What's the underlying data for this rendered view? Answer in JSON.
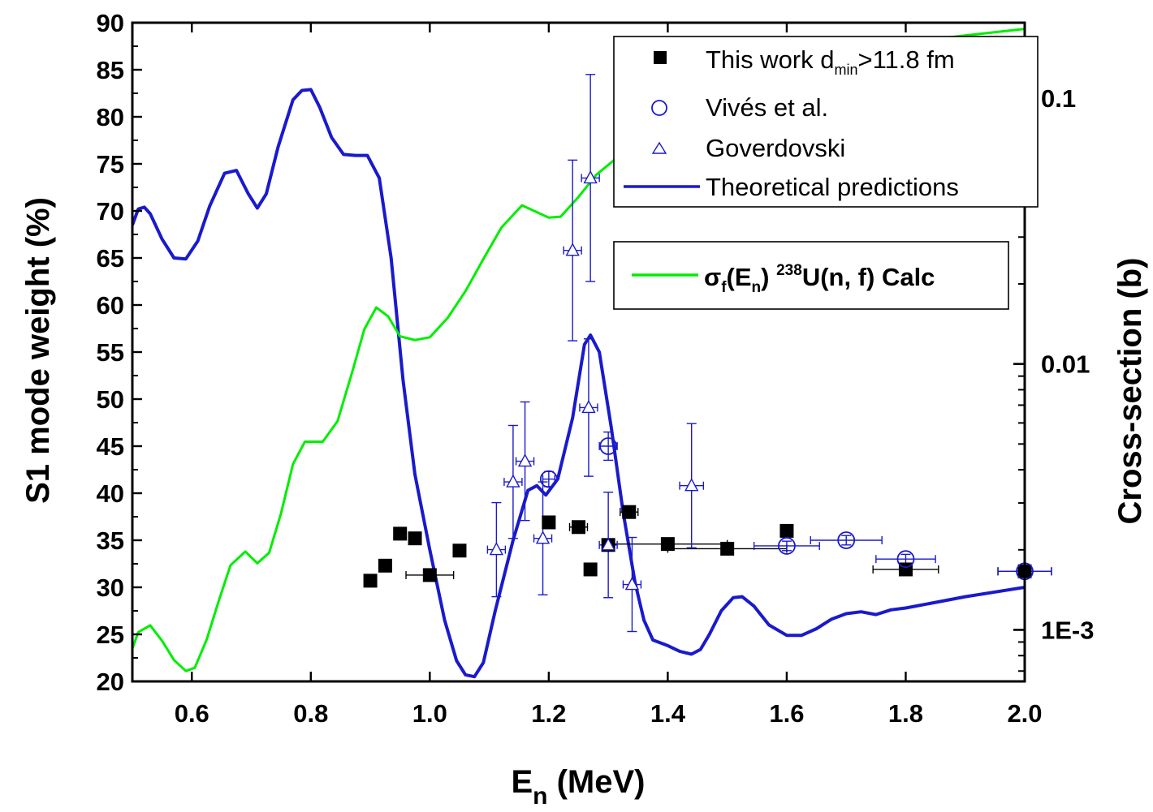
{
  "chart_data": {
    "type": "scatter",
    "x_axis": {
      "label_main": "E",
      "label_sub": "n",
      "label_rest": " (MeV)",
      "range": [
        0.5,
        2.0
      ],
      "ticks": [
        0.6,
        0.8,
        1.0,
        1.2,
        1.4,
        1.6,
        1.8,
        2.0
      ],
      "tick_labels": [
        "0.6",
        "0.8",
        "1.0",
        "1.2",
        "1.4",
        "1.6",
        "1.8",
        "2.0"
      ]
    },
    "y_axis_left": {
      "label": "S1 mode weight (%)",
      "range": [
        20,
        90
      ],
      "ticks": [
        20,
        25,
        30,
        35,
        40,
        45,
        50,
        55,
        60,
        65,
        70,
        75,
        80,
        85,
        90
      ],
      "tick_labels": [
        "20",
        "25",
        "30",
        "35",
        "40",
        "45",
        "50",
        "55",
        "60",
        "65",
        "70",
        "75",
        "80",
        "85",
        "90"
      ]
    },
    "y_axis_right": {
      "label": "Cross-section (b)",
      "scale": "log",
      "range": [
        0.00064,
        0.192
      ],
      "ticks": [
        0.001,
        0.01,
        0.1
      ],
      "tick_labels": [
        "1E-3",
        "0.01",
        "0.1"
      ]
    },
    "legend1": {
      "placement": "top-right",
      "entries": [
        {
          "label": "This work d",
          "sub": "min",
          "rest": ">11.8 fm",
          "marker": "filled-square"
        },
        {
          "label": "Vivés et al.",
          "marker": "open-circle"
        },
        {
          "label": "Goverdovski",
          "marker": "open-triangle"
        },
        {
          "label": "Theoretical predictions",
          "marker": "line"
        }
      ]
    },
    "legend2": {
      "placement": "top-right",
      "entries": [
        {
          "label_pre": "σ",
          "label_sub": "f",
          "label_mid": "(E",
          "label_sub2": "n",
          "label_close": ")",
          "label_sup": "238",
          "label_rest": "U(n, f) Calc",
          "marker": "line"
        }
      ]
    },
    "series": [
      {
        "name": "This work d_min>11.8 fm",
        "kind": "points",
        "marker": "filled-square",
        "color": "#000000",
        "points": [
          {
            "x": 0.9,
            "y": 30.7,
            "xerr": 0.01,
            "yerr": 0.4
          },
          {
            "x": 0.925,
            "y": 32.3,
            "xerr": 0.01,
            "yerr": 0.4
          },
          {
            "x": 0.95,
            "y": 35.7,
            "xerr": 0.01,
            "yerr": 0.4
          },
          {
            "x": 0.975,
            "y": 35.2,
            "xerr": 0.01,
            "yerr": 0.4
          },
          {
            "x": 1.0,
            "y": 31.3,
            "xerr": 0.04,
            "yerr": 0.4
          },
          {
            "x": 1.05,
            "y": 33.9,
            "xerr": 0.01,
            "yerr": 0.4
          },
          {
            "x": 1.2,
            "y": 36.9,
            "xerr": 0.01,
            "yerr": 0.4
          },
          {
            "x": 1.25,
            "y": 36.4,
            "xerr": 0.015,
            "yerr": 0.4
          },
          {
            "x": 1.27,
            "y": 31.9,
            "xerr": 0.01,
            "yerr": 0.4
          },
          {
            "x": 1.3,
            "y": 34.5,
            "xerr": 0.01,
            "yerr": 0.4
          },
          {
            "x": 1.335,
            "y": 38.0,
            "xerr": 0.015,
            "yerr": 0.4
          },
          {
            "x": 1.4,
            "y": 34.6,
            "xerr": 0.1,
            "yerr": 0.4
          },
          {
            "x": 1.5,
            "y": 34.1,
            "xerr": 0.1,
            "yerr": 0.4
          },
          {
            "x": 1.6,
            "y": 36.0,
            "xerr": 0.01,
            "yerr": 0.4
          },
          {
            "x": 1.8,
            "y": 31.9,
            "xerr": 0.055,
            "yerr": 0.4
          },
          {
            "x": 2.0,
            "y": 31.7,
            "xerr": 0.045,
            "yerr": 0.4
          }
        ]
      },
      {
        "name": "Vivés et al.",
        "kind": "points",
        "marker": "open-circle",
        "color": "#1a1acc",
        "points": [
          {
            "x": 1.2,
            "y": 41.5,
            "xerr": 0.01,
            "yerr": 0.8
          },
          {
            "x": 1.3,
            "y": 45.0,
            "xerr": 0.015,
            "yerr": 1.5
          },
          {
            "x": 1.6,
            "y": 34.4,
            "xerr": 0.055,
            "yerr": 0.5
          },
          {
            "x": 1.7,
            "y": 35.0,
            "xerr": 0.06,
            "yerr": 0.5
          },
          {
            "x": 1.8,
            "y": 33.0,
            "xerr": 0.05,
            "yerr": 0.5
          },
          {
            "x": 2.0,
            "y": 31.7,
            "xerr": 0.045,
            "yerr": 0.5
          }
        ]
      },
      {
        "name": "Goverdovski",
        "kind": "points",
        "marker": "open-triangle",
        "color": "#1a1acc",
        "points": [
          {
            "x": 1.112,
            "y": 34.0,
            "xerr": 0.015,
            "yerr": 5.0
          },
          {
            "x": 1.14,
            "y": 41.2,
            "xerr": 0.015,
            "yerr": 6.0
          },
          {
            "x": 1.16,
            "y": 43.4,
            "xerr": 0.015,
            "yerr": 6.3
          },
          {
            "x": 1.19,
            "y": 35.2,
            "xerr": 0.015,
            "yerr": 6.0
          },
          {
            "x": 1.24,
            "y": 65.8,
            "xerr": 0.015,
            "yerr": 9.6
          },
          {
            "x": 1.267,
            "y": 49.1,
            "xerr": 0.015,
            "yerr": 7.3
          },
          {
            "x": 1.27,
            "y": 73.5,
            "xerr": 0.015,
            "yerr": 11.0
          },
          {
            "x": 1.3,
            "y": 34.5,
            "xerr": 0.015,
            "yerr": 5.6
          },
          {
            "x": 1.34,
            "y": 30.3,
            "xerr": 0.015,
            "yerr": 5.0
          },
          {
            "x": 1.44,
            "y": 40.8,
            "xerr": 0.02,
            "yerr": 6.6
          }
        ]
      },
      {
        "name": "Theoretical predictions",
        "kind": "line",
        "color": "#1a1acc",
        "points": [
          [
            0.5,
            68.5
          ],
          [
            0.51,
            70.2
          ],
          [
            0.52,
            70.4
          ],
          [
            0.53,
            69.7
          ],
          [
            0.55,
            67.0
          ],
          [
            0.57,
            65.0
          ],
          [
            0.59,
            64.9
          ],
          [
            0.61,
            66.8
          ],
          [
            0.63,
            70.5
          ],
          [
            0.655,
            74.0
          ],
          [
            0.675,
            74.3
          ],
          [
            0.695,
            71.8
          ],
          [
            0.71,
            70.3
          ],
          [
            0.725,
            71.8
          ],
          [
            0.745,
            76.8
          ],
          [
            0.77,
            81.8
          ],
          [
            0.785,
            82.8
          ],
          [
            0.8,
            82.9
          ],
          [
            0.815,
            81.0
          ],
          [
            0.835,
            77.8
          ],
          [
            0.855,
            76.0
          ],
          [
            0.875,
            75.9
          ],
          [
            0.895,
            75.9
          ],
          [
            0.915,
            73.5
          ],
          [
            0.935,
            65.0
          ],
          [
            0.955,
            52.0
          ],
          [
            0.975,
            42.0
          ],
          [
            1.0,
            34.0
          ],
          [
            1.025,
            26.5
          ],
          [
            1.045,
            22.2
          ],
          [
            1.06,
            20.7
          ],
          [
            1.075,
            20.5
          ],
          [
            1.09,
            22.0
          ],
          [
            1.11,
            27.5
          ],
          [
            1.14,
            35.0
          ],
          [
            1.165,
            40.3
          ],
          [
            1.18,
            40.8
          ],
          [
            1.195,
            39.8
          ],
          [
            1.215,
            41.5
          ],
          [
            1.24,
            48.0
          ],
          [
            1.26,
            55.8
          ],
          [
            1.27,
            56.8
          ],
          [
            1.285,
            55.0
          ],
          [
            1.305,
            47.0
          ],
          [
            1.325,
            38.0
          ],
          [
            1.345,
            30.5
          ],
          [
            1.36,
            26.5
          ],
          [
            1.375,
            24.4
          ],
          [
            1.4,
            23.8
          ],
          [
            1.42,
            23.2
          ],
          [
            1.44,
            22.9
          ],
          [
            1.455,
            23.4
          ],
          [
            1.47,
            25.0
          ],
          [
            1.49,
            27.5
          ],
          [
            1.51,
            28.9
          ],
          [
            1.525,
            29.0
          ],
          [
            1.545,
            28.0
          ],
          [
            1.57,
            26.0
          ],
          [
            1.6,
            24.9
          ],
          [
            1.625,
            24.9
          ],
          [
            1.65,
            25.6
          ],
          [
            1.675,
            26.6
          ],
          [
            1.7,
            27.2
          ],
          [
            1.725,
            27.4
          ],
          [
            1.75,
            27.1
          ],
          [
            1.775,
            27.6
          ],
          [
            1.8,
            27.8
          ],
          [
            1.85,
            28.4
          ],
          [
            1.9,
            29.0
          ],
          [
            1.95,
            29.5
          ],
          [
            2.0,
            30.0
          ]
        ]
      },
      {
        "name": "σf(En) 238U(n, f) Calc",
        "kind": "line",
        "axis": "right",
        "color": "#00ee00",
        "points": [
          [
            0.5,
            0.00085
          ],
          [
            0.51,
            0.00098
          ],
          [
            0.53,
            0.00104
          ],
          [
            0.55,
            0.00091
          ],
          [
            0.57,
            0.00077
          ],
          [
            0.59,
            0.0007
          ],
          [
            0.605,
            0.00072
          ],
          [
            0.625,
            0.00092
          ],
          [
            0.645,
            0.00128
          ],
          [
            0.665,
            0.00175
          ],
          [
            0.69,
            0.00197
          ],
          [
            0.71,
            0.00178
          ],
          [
            0.73,
            0.00195
          ],
          [
            0.75,
            0.00275
          ],
          [
            0.77,
            0.0042
          ],
          [
            0.79,
            0.0051
          ],
          [
            0.82,
            0.0051
          ],
          [
            0.845,
            0.0061
          ],
          [
            0.87,
            0.0094
          ],
          [
            0.89,
            0.0135
          ],
          [
            0.91,
            0.0163
          ],
          [
            0.93,
            0.0151
          ],
          [
            0.95,
            0.0127
          ],
          [
            0.975,
            0.0123
          ],
          [
            1.0,
            0.0126
          ],
          [
            1.03,
            0.0149
          ],
          [
            1.06,
            0.0188
          ],
          [
            1.09,
            0.0248
          ],
          [
            1.12,
            0.0325
          ],
          [
            1.155,
            0.0395
          ],
          [
            1.2,
            0.0355
          ],
          [
            1.22,
            0.0358
          ],
          [
            1.25,
            0.0425
          ],
          [
            1.28,
            0.0515
          ],
          [
            1.31,
            0.0585
          ],
          [
            1.33,
            0.065
          ],
          [
            1.36,
            0.088
          ],
          [
            1.4,
            0.108
          ],
          [
            1.5,
            0.128
          ],
          [
            1.6,
            0.142
          ],
          [
            1.7,
            0.152
          ],
          [
            1.8,
            0.162
          ],
          [
            1.9,
            0.172
          ],
          [
            2.0,
            0.182
          ]
        ]
      }
    ]
  }
}
